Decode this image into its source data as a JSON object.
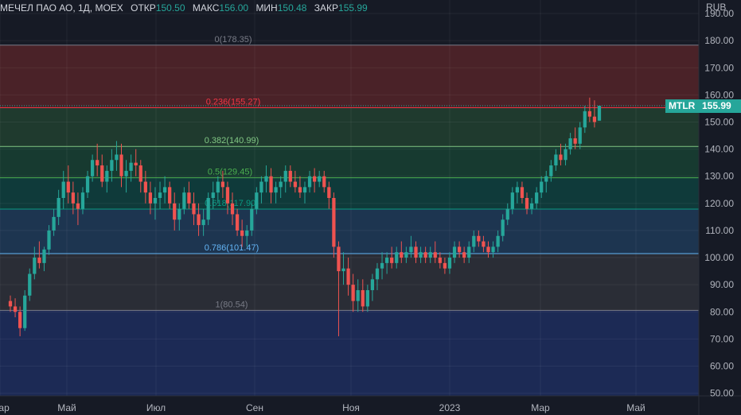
{
  "legend": {
    "symbol": "МЕЧЕЛ ПАО АО, 1Д, MOEX",
    "open_label": "ОТКР",
    "open": "150.50",
    "high_label": "МАКС",
    "high": "156.00",
    "low_label": "МИН",
    "low": "150.48",
    "close_label": "ЗАКР",
    "close": "155.99"
  },
  "badges": {
    "ticker": "MTLR",
    "price": "155.99"
  },
  "colors": {
    "up": "#26a69a",
    "down": "#ef5350",
    "background": "#161a25"
  },
  "chart_data": {
    "type": "candlestick",
    "currency": "RUB",
    "y_ticks": [
      "190.00",
      "180.00",
      "170.00",
      "160.00",
      "150.00",
      "140.00",
      "130.00",
      "120.00",
      "110.00",
      "100.00",
      "90.00",
      "80.00",
      "70.00",
      "60.00",
      "50.00"
    ],
    "ylim": [
      49,
      195
    ],
    "x_ticks": [
      "Мар",
      "Май",
      "Июл",
      "Сен",
      "Ноя",
      "2023",
      "Мар",
      "Май"
    ],
    "last_price": 155.99,
    "fibonacci": [
      {
        "label": "0(178.35)",
        "level": 178.35,
        "color": "#787b86"
      },
      {
        "label": "0.236(155.27)",
        "level": 155.27,
        "color": "#f23645"
      },
      {
        "label": "0.382(140.99)",
        "level": 140.99,
        "color": "#81c784"
      },
      {
        "label": "0.5(129.45)",
        "level": 129.45,
        "color": "#4caf50"
      },
      {
        "label": "0.618(117.90)",
        "level": 117.9,
        "color": "#089981"
      },
      {
        "label": "0.786(101.47)",
        "level": 101.47,
        "color": "#64b5f6"
      },
      {
        "label": "1(80.54)",
        "level": 80.54,
        "color": "#787b86"
      }
    ],
    "series": [
      {
        "values": [
          [
            84,
            86,
            80,
            82
          ],
          [
            82,
            85,
            78,
            80
          ],
          [
            80,
            82,
            71,
            74
          ],
          [
            74,
            88,
            73,
            86
          ],
          [
            86,
            96,
            84,
            94
          ],
          [
            94,
            104,
            92,
            100
          ],
          [
            100,
            106,
            96,
            98
          ],
          [
            98,
            104,
            95,
            103
          ],
          [
            103,
            112,
            101,
            110
          ],
          [
            110,
            118,
            108,
            115
          ],
          [
            115,
            125,
            112,
            122
          ],
          [
            122,
            132,
            118,
            128
          ],
          [
            128,
            134,
            120,
            124
          ],
          [
            124,
            128,
            116,
            120
          ],
          [
            120,
            124,
            112,
            118
          ],
          [
            118,
            126,
            116,
            124
          ],
          [
            124,
            132,
            122,
            130
          ],
          [
            130,
            138,
            128,
            136
          ],
          [
            136,
            142,
            130,
            134
          ],
          [
            134,
            138,
            126,
            128
          ],
          [
            128,
            134,
            124,
            132
          ],
          [
            132,
            140,
            128,
            136
          ],
          [
            136,
            143,
            132,
            138
          ],
          [
            138,
            142,
            126,
            130
          ],
          [
            130,
            136,
            124,
            132
          ],
          [
            132,
            138,
            128,
            135
          ],
          [
            135,
            140,
            130,
            134
          ],
          [
            134,
            136,
            124,
            128
          ],
          [
            128,
            132,
            120,
            124
          ],
          [
            124,
            128,
            116,
            120
          ],
          [
            120,
            126,
            114,
            122
          ],
          [
            122,
            128,
            118,
            124
          ],
          [
            124,
            130,
            120,
            126
          ],
          [
            126,
            128,
            118,
            120
          ],
          [
            120,
            124,
            110,
            114
          ],
          [
            114,
            120,
            110,
            118
          ],
          [
            118,
            126,
            116,
            124
          ],
          [
            124,
            128,
            118,
            120
          ],
          [
            120,
            124,
            112,
            116
          ],
          [
            116,
            120,
            108,
            112
          ],
          [
            112,
            118,
            108,
            114
          ],
          [
            114,
            124,
            112,
            122
          ],
          [
            122,
            128,
            118,
            124
          ],
          [
            124,
            130,
            120,
            128
          ],
          [
            128,
            132,
            122,
            126
          ],
          [
            126,
            128,
            116,
            120
          ],
          [
            120,
            124,
            112,
            116
          ],
          [
            116,
            118,
            108,
            110
          ],
          [
            110,
            114,
            104,
            108
          ],
          [
            108,
            112,
            104,
            110
          ],
          [
            110,
            120,
            108,
            118
          ],
          [
            118,
            126,
            116,
            124
          ],
          [
            124,
            130,
            120,
            128
          ],
          [
            128,
            134,
            124,
            130
          ],
          [
            130,
            133,
            120,
            124
          ],
          [
            124,
            128,
            120,
            126
          ],
          [
            126,
            130,
            122,
            128
          ],
          [
            128,
            134,
            124,
            132
          ],
          [
            132,
            134,
            126,
            128
          ],
          [
            128,
            132,
            124,
            126
          ],
          [
            126,
            130,
            122,
            124
          ],
          [
            124,
            128,
            120,
            126
          ],
          [
            126,
            132,
            124,
            130
          ],
          [
            130,
            133,
            124,
            128
          ],
          [
            128,
            132,
            126,
            130
          ],
          [
            130,
            132,
            124,
            126
          ],
          [
            126,
            128,
            118,
            122
          ],
          [
            122,
            124,
            100,
            104
          ],
          [
            104,
            106,
            71,
            95
          ],
          [
            95,
            102,
            90,
            96
          ],
          [
            96,
            100,
            86,
            90
          ],
          [
            90,
            94,
            80,
            84
          ],
          [
            84,
            92,
            80,
            88
          ],
          [
            88,
            92,
            80,
            82
          ],
          [
            82,
            90,
            80,
            88
          ],
          [
            88,
            94,
            84,
            92
          ],
          [
            92,
            98,
            88,
            96
          ],
          [
            96,
            102,
            92,
            98
          ],
          [
            98,
            102,
            94,
            100
          ],
          [
            100,
            104,
            96,
            98
          ],
          [
            98,
            104,
            96,
            102
          ],
          [
            102,
            106,
            98,
            100
          ],
          [
            100,
            104,
            98,
            102
          ],
          [
            102,
            108,
            100,
            104
          ],
          [
            104,
            106,
            98,
            100
          ],
          [
            100,
            104,
            98,
            102
          ],
          [
            102,
            104,
            98,
            100
          ],
          [
            100,
            104,
            98,
            102
          ],
          [
            102,
            106,
            98,
            100
          ],
          [
            100,
            102,
            96,
            98
          ],
          [
            98,
            100,
            94,
            96
          ],
          [
            96,
            102,
            94,
            100
          ],
          [
            100,
            106,
            98,
            104
          ],
          [
            104,
            106,
            100,
            102
          ],
          [
            102,
            104,
            98,
            100
          ],
          [
            100,
            106,
            98,
            104
          ],
          [
            104,
            110,
            102,
            108
          ],
          [
            108,
            110,
            104,
            106
          ],
          [
            106,
            108,
            102,
            104
          ],
          [
            104,
            106,
            100,
            102
          ],
          [
            102,
            106,
            100,
            104
          ],
          [
            104,
            110,
            102,
            108
          ],
          [
            108,
            116,
            106,
            114
          ],
          [
            114,
            120,
            112,
            118
          ],
          [
            118,
            126,
            116,
            124
          ],
          [
            124,
            128,
            120,
            126
          ],
          [
            126,
            128,
            120,
            122
          ],
          [
            122,
            124,
            116,
            118
          ],
          [
            118,
            122,
            116,
            120
          ],
          [
            120,
            126,
            118,
            124
          ],
          [
            124,
            130,
            122,
            128
          ],
          [
            128,
            132,
            124,
            130
          ],
          [
            130,
            136,
            128,
            134
          ],
          [
            134,
            140,
            132,
            138
          ],
          [
            138,
            142,
            134,
            136
          ],
          [
            136,
            142,
            134,
            140
          ],
          [
            140,
            146,
            138,
            144
          ],
          [
            144,
            148,
            140,
            142
          ],
          [
            142,
            150,
            140,
            148
          ],
          [
            148,
            156,
            146,
            154
          ],
          [
            154,
            159,
            150,
            152
          ],
          [
            152,
            158,
            148,
            150
          ],
          [
            150.5,
            156.0,
            150.48,
            155.99
          ]
        ]
      }
    ]
  }
}
